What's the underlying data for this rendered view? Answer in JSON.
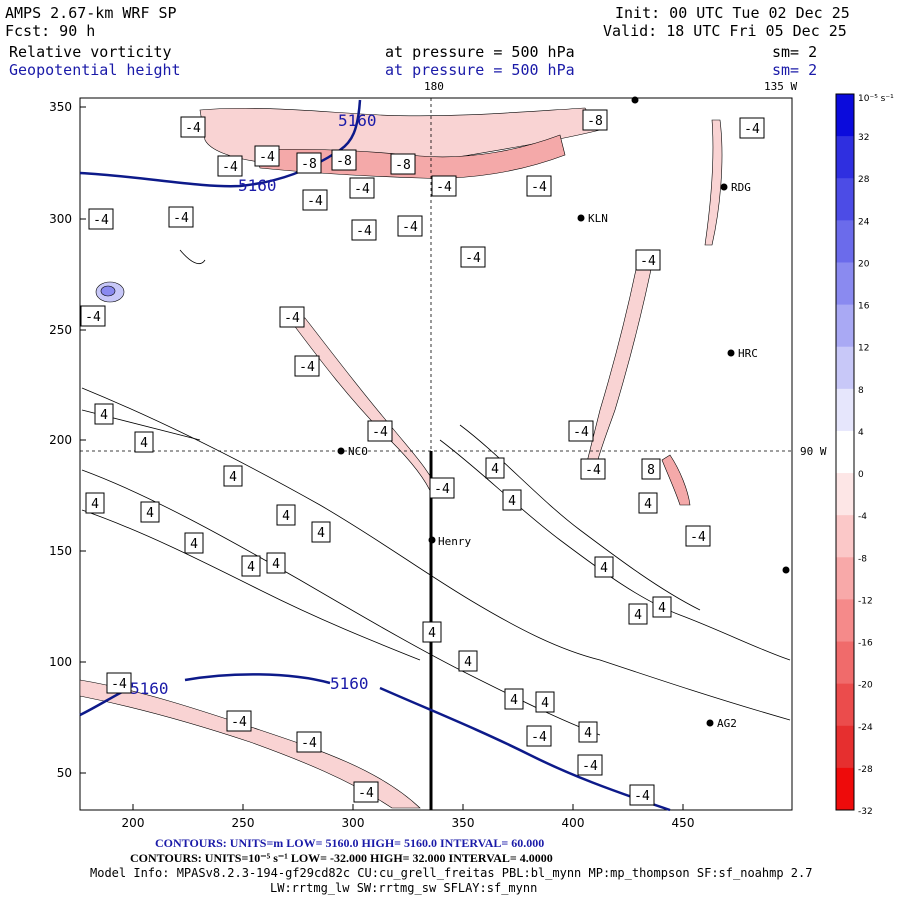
{
  "header": {
    "model": "AMPS 2.67-km WRF SP",
    "forecast": "Fcst:    90 h",
    "init": "Init: 00 UTC Tue 02 Dec 25",
    "valid": "Valid: 18 UTC Fri 05 Dec 25",
    "field1_name": "Relative vorticity",
    "field1_level": "at pressure =  500 hPa",
    "field1_sm": "sm= 2",
    "field2_name": "Geopotential height",
    "field2_level": "at pressure =  500 hPa",
    "field2_sm": "sm= 2"
  },
  "map": {
    "meridian_top_label": "180",
    "meridian_top_right_label": "135 W",
    "parallel_right_label": "90 W",
    "x_ticks": [
      "200",
      "250",
      "300",
      "350",
      "400",
      "450"
    ],
    "y_ticks": [
      "350",
      "300",
      "250",
      "200",
      "150",
      "100",
      "50"
    ],
    "stations": [
      {
        "name": "NCO"
      },
      {
        "name": "Henry"
      },
      {
        "name": "KLN"
      },
      {
        "name": "RDG"
      },
      {
        "name": "HRC"
      },
      {
        "name": "AG2"
      }
    ],
    "height_contour_label": "5160",
    "vort_labels": [
      "-4",
      "-8",
      "4",
      "8"
    ]
  },
  "colorbar": {
    "unit_label": "10⁻⁵ s⁻¹",
    "ticks": [
      "32",
      "28",
      "24",
      "20",
      "16",
      "12",
      "8",
      "4",
      "0",
      "-4",
      "-8",
      "-12",
      "-16",
      "-20",
      "-24",
      "-28",
      "-32"
    ],
    "colors": [
      "#0b0bdc",
      "#2f2fe0",
      "#4c4ce6",
      "#6b6beb",
      "#8a8af0",
      "#a9a9f4",
      "#c8c8f8",
      "#e6e6fc",
      "#ffffff",
      "#fde6e6",
      "#fbc8c8",
      "#f8a9a9",
      "#f58a8a",
      "#f06b6b",
      "#eb4c4c",
      "#e62f2f",
      "#ee0b0b"
    ]
  },
  "footer": {
    "line1": "CONTOURS:  UNITS=m  LOW=  5160.0        HIGH=  5160.0      INTERVAL=  60.000",
    "line2": "CONTOURS:  UNITS=10⁻⁵ s⁻¹  LOW= -32.000        HIGH=  32.000      INTERVAL=  4.0000",
    "line3": "Model Info: MPASv8.2.3-194-gf29cd82c CU:cu_grell_freitas PBL:bl_mynn MP:mp_thompson SF:sf_noahmp 2.7",
    "line4": "LW:rrtmg_lw SW:rrtmg_sw SFLAY:sf_mynn"
  }
}
